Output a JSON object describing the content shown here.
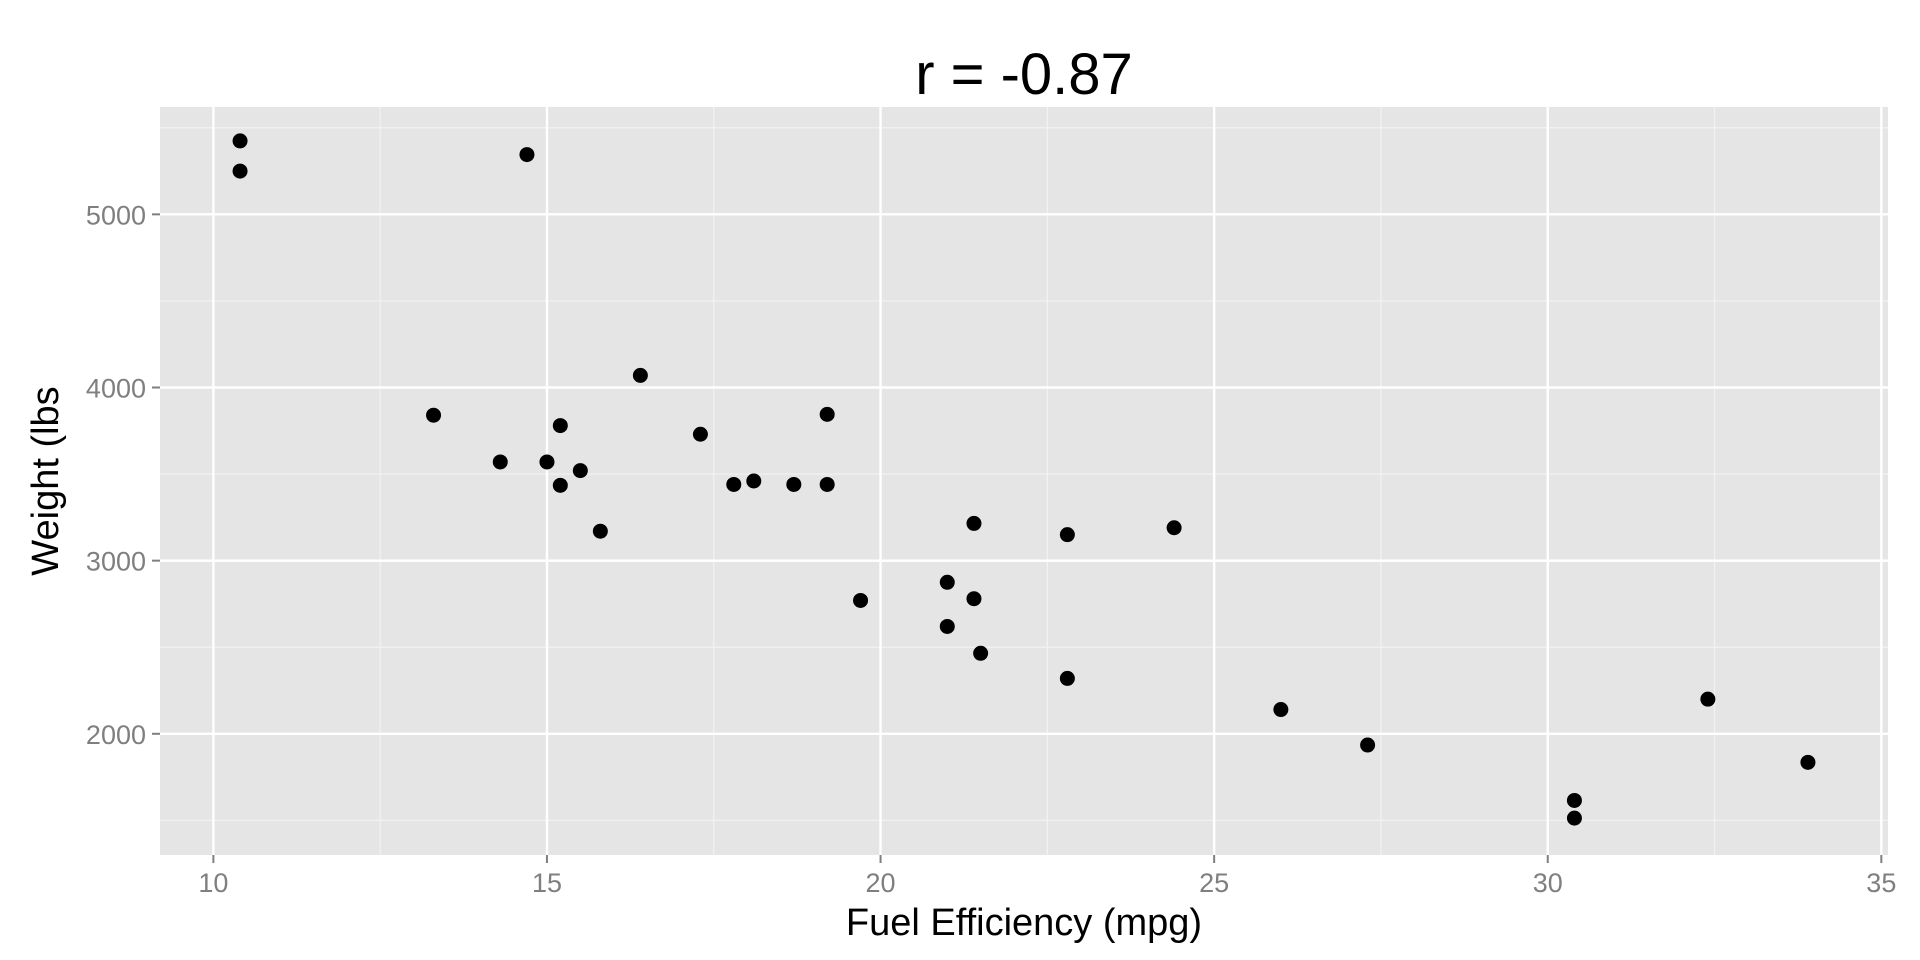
{
  "chart_data": {
    "type": "scatter",
    "title": "r =  -0.87",
    "xlabel": "Fuel Efficiency (mpg)",
    "ylabel": "Weight (lbs",
    "xlim": [
      9.2,
      35.1
    ],
    "ylim": [
      1300,
      5620
    ],
    "xticks": [
      10,
      15,
      20,
      25,
      30,
      35
    ],
    "yticks": [
      2000,
      3000,
      4000,
      5000
    ],
    "xtick_labels": [
      "10",
      "15",
      "20",
      "25",
      "30",
      "35"
    ],
    "ytick_labels": [
      "2000",
      "3000",
      "4000",
      "5000"
    ],
    "x_minor": [
      12.5,
      17.5,
      22.5,
      27.5,
      32.5
    ],
    "y_minor": [
      1500,
      2500,
      3500,
      4500,
      5500
    ],
    "grid": true,
    "colors": {
      "panel": "#e5e5e5",
      "grid": "#ffffff",
      "point": "#000000"
    },
    "points": [
      {
        "x": 21.0,
        "y": 2620
      },
      {
        "x": 21.0,
        "y": 2875
      },
      {
        "x": 22.8,
        "y": 2320
      },
      {
        "x": 21.4,
        "y": 3215
      },
      {
        "x": 18.7,
        "y": 3440
      },
      {
        "x": 18.1,
        "y": 3460
      },
      {
        "x": 14.3,
        "y": 3570
      },
      {
        "x": 24.4,
        "y": 3190
      },
      {
        "x": 22.8,
        "y": 3150
      },
      {
        "x": 19.2,
        "y": 3440
      },
      {
        "x": 17.8,
        "y": 3440
      },
      {
        "x": 16.4,
        "y": 4070
      },
      {
        "x": 17.3,
        "y": 3730
      },
      {
        "x": 15.2,
        "y": 3780
      },
      {
        "x": 10.4,
        "y": 5250
      },
      {
        "x": 10.4,
        "y": 5424
      },
      {
        "x": 14.7,
        "y": 5345
      },
      {
        "x": 32.4,
        "y": 2200
      },
      {
        "x": 30.4,
        "y": 1615
      },
      {
        "x": 33.9,
        "y": 1835
      },
      {
        "x": 21.5,
        "y": 2465
      },
      {
        "x": 15.5,
        "y": 3520
      },
      {
        "x": 15.2,
        "y": 3435
      },
      {
        "x": 13.3,
        "y": 3840
      },
      {
        "x": 19.2,
        "y": 3845
      },
      {
        "x": 27.3,
        "y": 1935
      },
      {
        "x": 26.0,
        "y": 2140
      },
      {
        "x": 30.4,
        "y": 1513
      },
      {
        "x": 15.8,
        "y": 3170
      },
      {
        "x": 19.7,
        "y": 2770
      },
      {
        "x": 15.0,
        "y": 3570
      },
      {
        "x": 21.4,
        "y": 2780
      }
    ]
  }
}
